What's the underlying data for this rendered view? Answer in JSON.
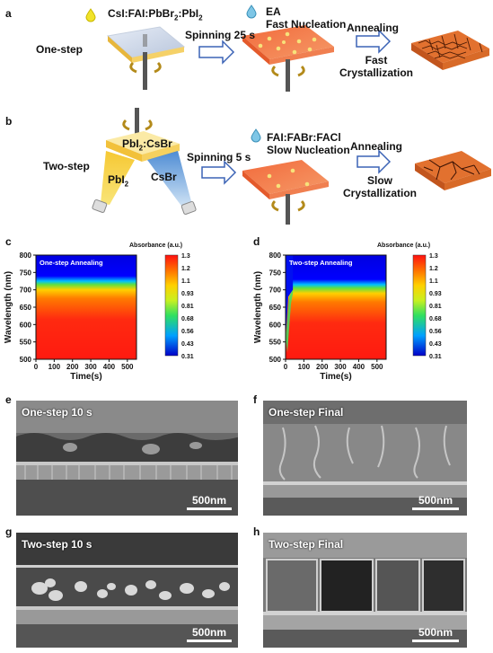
{
  "panels": {
    "a": "a",
    "b": "b",
    "c": "c",
    "d": "d",
    "e": "e",
    "f": "f",
    "g": "g",
    "h": "h"
  },
  "schematic": {
    "one_step": {
      "label": "One-step",
      "precursor": "CsI:FAI:PbBr",
      "precursor_sub1": "2",
      "precursor_mid": ":PbI",
      "precursor_sub2": "2",
      "spin": "Spinning 25 s",
      "antisolvent": "EA",
      "nucleation": "Fast Nucleation",
      "anneal": "Annealing",
      "cryst_1": "Fast",
      "cryst_2": "Crystallization"
    },
    "two_step": {
      "label": "Two-step",
      "substrate_a": "PbI",
      "substrate_a_sub": "2",
      "substrate_b": ":CsBr",
      "source1": "PbI",
      "source1_sub": "2",
      "source2": "CsBr",
      "spin": "Spinning 5 s",
      "solution": "FAI:FABr:FACl",
      "nucleation": "Slow Nucleation",
      "anneal": "Annealing",
      "cryst_1": "Slow",
      "cryst_2": "Crystallization"
    }
  },
  "colors": {
    "orange": "#f2703a",
    "yellow": "#f5d23a",
    "blue": "#4a8fd6"
  },
  "chart_data": [
    {
      "type": "heatmap",
      "title": "One-step Annealing",
      "xlabel": "Time(s)",
      "ylabel": "Wavelength (nm)",
      "xlim": [
        0,
        550
      ],
      "ylim": [
        500,
        800
      ],
      "x_ticks": [
        0,
        100,
        200,
        300,
        400,
        500
      ],
      "y_ticks": [
        500,
        550,
        600,
        650,
        700,
        750,
        800
      ],
      "absorption_edge_nm": 725,
      "colorbar_label": "Absorbance (a.u.)",
      "colorbar_ticks": [
        "1.3",
        "1.2",
        "1.1",
        "0.93",
        "0.81",
        "0.68",
        "0.56",
        "0.43",
        "0.31"
      ]
    },
    {
      "type": "heatmap",
      "title": "Two-step Annealing",
      "xlabel": "Time(s)",
      "ylabel": "Wavelength (nm)",
      "xlim": [
        0,
        550
      ],
      "ylim": [
        500,
        800
      ],
      "x_ticks": [
        0,
        100,
        200,
        300,
        400,
        500
      ],
      "y_ticks": [
        500,
        550,
        600,
        650,
        700,
        750,
        800
      ],
      "absorption_edge_start_nm": 560,
      "absorption_edge_nm": 715,
      "colorbar_label": "Absorbance (a.u.)",
      "colorbar_ticks": [
        "1.3",
        "1.2",
        "1.1",
        "0.93",
        "0.81",
        "0.68",
        "0.56",
        "0.43",
        "0.31"
      ]
    }
  ],
  "sem": {
    "e": {
      "title": "One-step 10 s",
      "scale": "500nm"
    },
    "f": {
      "title": "One-step Final",
      "scale": "500nm"
    },
    "g": {
      "title": "Two-step 10 s",
      "scale": "500nm"
    },
    "h": {
      "title": "Two-step Final",
      "scale": "500nm"
    }
  }
}
